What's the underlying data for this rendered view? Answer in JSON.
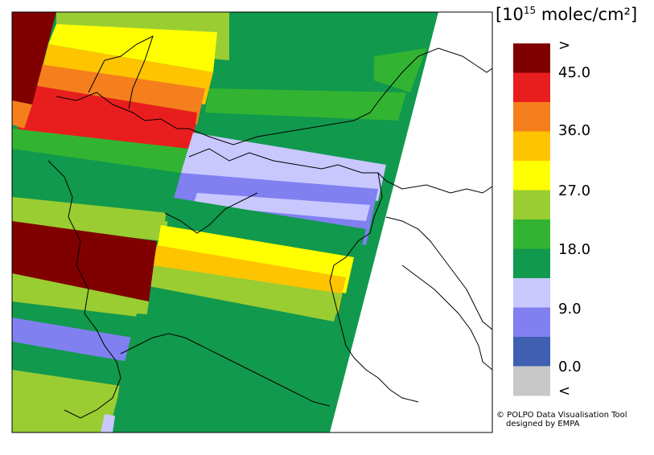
{
  "legend": {
    "unit_prefix": "[10",
    "unit_exponent": "15",
    "unit_suffix": " molec/cm²]",
    "bins": [
      {
        "label": ">",
        "color": "#800000"
      },
      {
        "label": "",
        "color": "#e81e1e"
      },
      {
        "label": "",
        "color": "#f57f1c"
      },
      {
        "label": "",
        "color": "#ffc400"
      },
      {
        "label": "",
        "color": "#ffff00"
      },
      {
        "label": "",
        "color": "#9acd32"
      },
      {
        "label": "",
        "color": "#32b432"
      },
      {
        "label": "",
        "color": "#11994d"
      },
      {
        "label": "",
        "color": "#c8c8ff"
      },
      {
        "label": "",
        "color": "#8080f0"
      },
      {
        "label": "",
        "color": "#3f5fb0"
      },
      {
        "label": "",
        "color": "#c8c8c8"
      }
    ],
    "labels": [
      ">",
      "45.0",
      "36.0",
      "27.0",
      "18.0",
      "9.0",
      "0.0",
      "<"
    ]
  },
  "credits": {
    "line1": "© POLPO Data Visualisation Tool",
    "line2": "designed by EMPA"
  },
  "colors": {
    "background": "#ffffff",
    "border": "#000000",
    "coast": "#000000"
  }
}
